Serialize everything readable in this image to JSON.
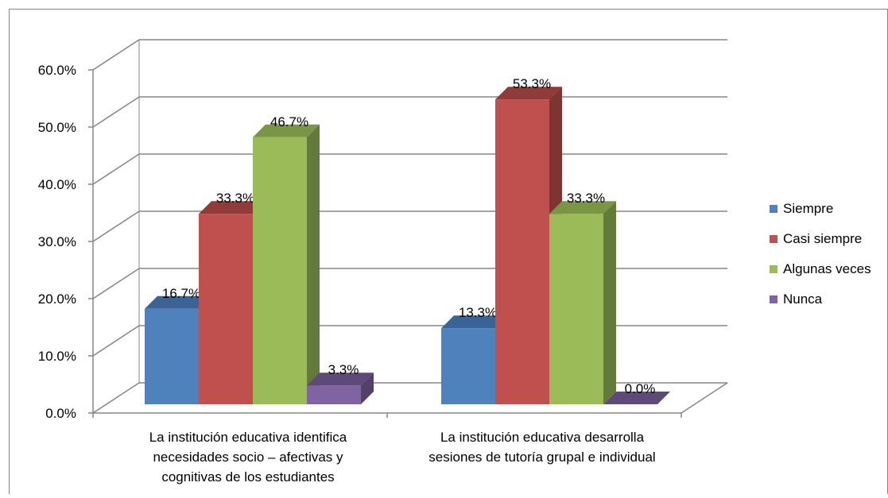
{
  "chart_data": {
    "type": "bar",
    "categories": [
      [
        "La institución educativa identifica",
        "necesidades socio – afectivas y",
        "cognitivas de los estudiantes"
      ],
      [
        "La institución educativa desarrolla",
        "sesiones de tutoría grupal e individual"
      ]
    ],
    "series": [
      {
        "name": "Siempre",
        "values": [
          16.7,
          13.3
        ],
        "labels": [
          "16.7%",
          "13.3%"
        ],
        "color": "#4f81bd",
        "side": "#3a6396",
        "top": "#3a6396"
      },
      {
        "name": "Casi siempre",
        "values": [
          33.3,
          53.3
        ],
        "labels": [
          "33.3%",
          "53.3%"
        ],
        "color": "#c0504d",
        "side": "#7d3432",
        "top": "#8e3b39"
      },
      {
        "name": "Algunas veces",
        "values": [
          46.7,
          33.3
        ],
        "labels": [
          "46.7%",
          "33.3%"
        ],
        "color": "#9bbb59",
        "side": "#647a3a",
        "top": "#7a9645"
      },
      {
        "name": "Nunca",
        "values": [
          3.3,
          0.0
        ],
        "labels": [
          "3.3%",
          "0.0%"
        ],
        "color": "#8064a2",
        "side": "#53416a",
        "top": "#5e4a78"
      }
    ],
    "yticks": [
      "0.0%",
      "10.0%",
      "20.0%",
      "30.0%",
      "40.0%",
      "50.0%",
      "60.0%"
    ],
    "ylim": [
      0,
      60
    ],
    "grid": true,
    "legend": "right"
  }
}
